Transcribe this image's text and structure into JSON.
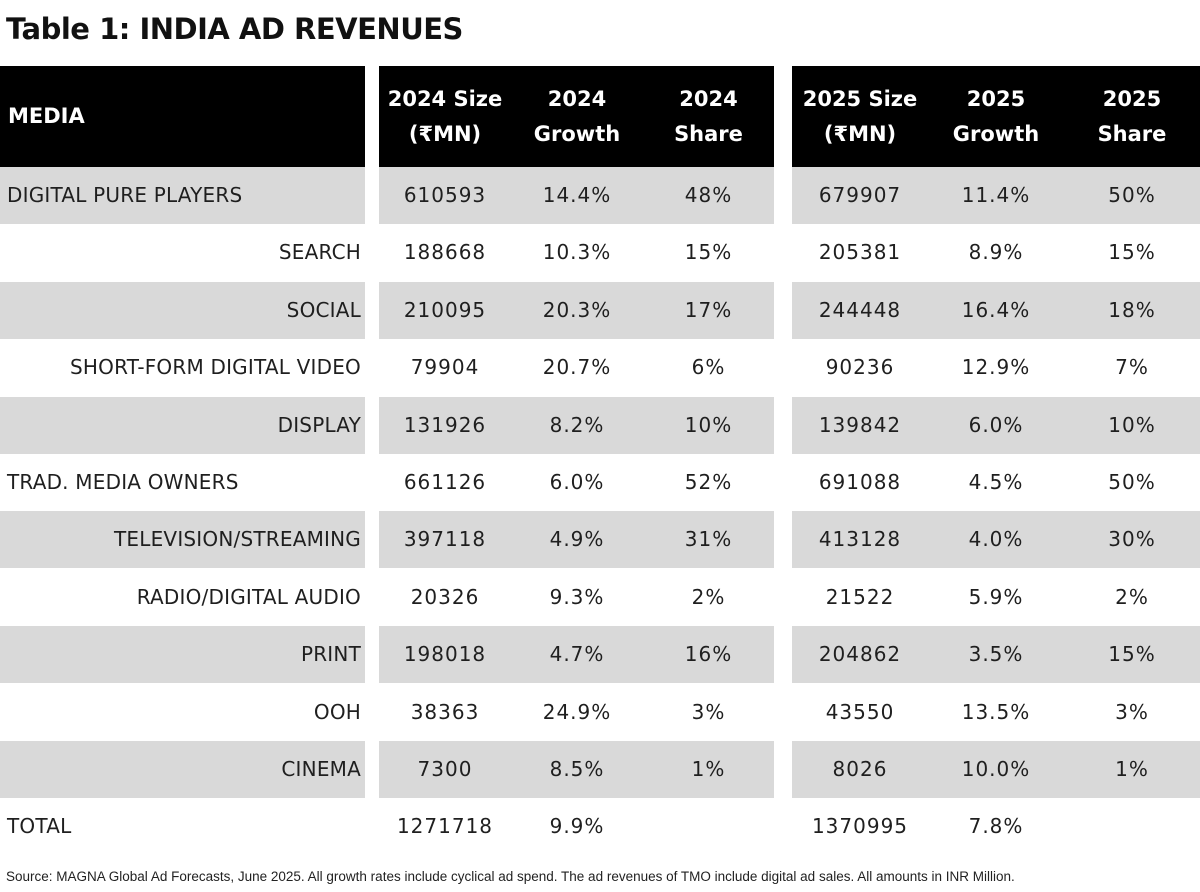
{
  "title": "Table 1: INDIA AD REVENUES",
  "chart_data": {
    "type": "table",
    "title": "Table 1: INDIA AD REVENUES",
    "columns": [
      {
        "line1": "MEDIA",
        "line2": ""
      },
      {
        "line1": "2024 Size",
        "line2": "(₹MN)"
      },
      {
        "line1": "2024",
        "line2": "Growth"
      },
      {
        "line1": "2024",
        "line2": "Share"
      },
      {
        "line1": "2025 Size",
        "line2": "(₹MN)"
      },
      {
        "line1": "2025",
        "line2": "Growth"
      },
      {
        "line1": "2025",
        "line2": "Share"
      }
    ],
    "rows": [
      {
        "media": "DIGITAL PURE PLAYERS",
        "level": "main",
        "shaded": true,
        "values": [
          "610593",
          "14.4%",
          "48%",
          "679907",
          "11.4%",
          "50%"
        ]
      },
      {
        "media": "SEARCH",
        "level": "sub",
        "shaded": false,
        "values": [
          "188668",
          "10.3%",
          "15%",
          "205381",
          "8.9%",
          "15%"
        ]
      },
      {
        "media": "SOCIAL",
        "level": "sub",
        "shaded": true,
        "values": [
          "210095",
          "20.3%",
          "17%",
          "244448",
          "16.4%",
          "18%"
        ]
      },
      {
        "media": "SHORT-FORM DIGITAL VIDEO",
        "level": "sub",
        "shaded": false,
        "values": [
          "79904",
          "20.7%",
          "6%",
          "90236",
          "12.9%",
          "7%"
        ]
      },
      {
        "media": "DISPLAY",
        "level": "sub",
        "shaded": true,
        "values": [
          "131926",
          "8.2%",
          "10%",
          "139842",
          "6.0%",
          "10%"
        ]
      },
      {
        "media": "TRAD. MEDIA OWNERS",
        "level": "main",
        "shaded": false,
        "values": [
          "661126",
          "6.0%",
          "52%",
          "691088",
          "4.5%",
          "50%"
        ]
      },
      {
        "media": "TELEVISION/STREAMING",
        "level": "sub",
        "shaded": true,
        "values": [
          "397118",
          "4.9%",
          "31%",
          "413128",
          "4.0%",
          "30%"
        ]
      },
      {
        "media": "RADIO/DIGITAL AUDIO",
        "level": "sub",
        "shaded": false,
        "values": [
          "20326",
          "9.3%",
          "2%",
          "21522",
          "5.9%",
          "2%"
        ]
      },
      {
        "media": "PRINT",
        "level": "sub",
        "shaded": true,
        "values": [
          "198018",
          "4.7%",
          "16%",
          "204862",
          "3.5%",
          "15%"
        ]
      },
      {
        "media": "OOH",
        "level": "sub",
        "shaded": false,
        "values": [
          "38363",
          "24.9%",
          "3%",
          "43550",
          "13.5%",
          "3%"
        ]
      },
      {
        "media": "CINEMA",
        "level": "sub",
        "shaded": true,
        "values": [
          "7300",
          "8.5%",
          "1%",
          "8026",
          "10.0%",
          "1%"
        ]
      },
      {
        "media": "TOTAL",
        "level": "main",
        "shaded": false,
        "values": [
          "1271718",
          "9.9%",
          "",
          "1370995",
          "7.8%",
          ""
        ]
      }
    ]
  },
  "source": "Source: MAGNA Global Ad Forecasts, June 2025. All growth rates include cyclical ad spend. The ad revenues of TMO include digital ad sales. All amounts in INR Million.",
  "colors": {
    "header_bg": "#000000",
    "header_text": "#ffffff",
    "shade": "#d9d9d9",
    "text": "#1f1f1f"
  }
}
